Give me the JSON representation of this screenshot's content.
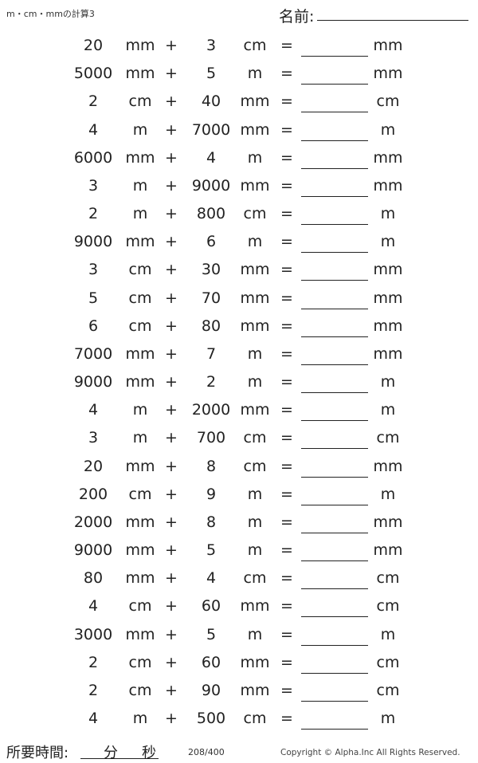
{
  "header": {
    "title": "m・cm・mmの計算3",
    "name_label": "名前:"
  },
  "problems": [
    {
      "a": "20",
      "u1": "mm",
      "b": "3",
      "u2": "cm",
      "ans": "mm"
    },
    {
      "a": "5000",
      "u1": "mm",
      "b": "5",
      "u2": "m",
      "ans": "mm"
    },
    {
      "a": "2",
      "u1": "cm",
      "b": "40",
      "u2": "mm",
      "ans": "cm"
    },
    {
      "a": "4",
      "u1": "m",
      "b": "7000",
      "u2": "mm",
      "ans": "m"
    },
    {
      "a": "6000",
      "u1": "mm",
      "b": "4",
      "u2": "m",
      "ans": "mm"
    },
    {
      "a": "3",
      "u1": "m",
      "b": "9000",
      "u2": "mm",
      "ans": "mm"
    },
    {
      "a": "2",
      "u1": "m",
      "b": "800",
      "u2": "cm",
      "ans": "m"
    },
    {
      "a": "9000",
      "u1": "mm",
      "b": "6",
      "u2": "m",
      "ans": "m"
    },
    {
      "a": "3",
      "u1": "cm",
      "b": "30",
      "u2": "mm",
      "ans": "mm"
    },
    {
      "a": "5",
      "u1": "cm",
      "b": "70",
      "u2": "mm",
      "ans": "mm"
    },
    {
      "a": "6",
      "u1": "cm",
      "b": "80",
      "u2": "mm",
      "ans": "mm"
    },
    {
      "a": "7000",
      "u1": "mm",
      "b": "7",
      "u2": "m",
      "ans": "mm"
    },
    {
      "a": "9000",
      "u1": "mm",
      "b": "2",
      "u2": "m",
      "ans": "m"
    },
    {
      "a": "4",
      "u1": "m",
      "b": "2000",
      "u2": "mm",
      "ans": "m"
    },
    {
      "a": "3",
      "u1": "m",
      "b": "700",
      "u2": "cm",
      "ans": "cm"
    },
    {
      "a": "20",
      "u1": "mm",
      "b": "8",
      "u2": "cm",
      "ans": "mm"
    },
    {
      "a": "200",
      "u1": "cm",
      "b": "9",
      "u2": "m",
      "ans": "m"
    },
    {
      "a": "2000",
      "u1": "mm",
      "b": "8",
      "u2": "m",
      "ans": "mm"
    },
    {
      "a": "9000",
      "u1": "mm",
      "b": "5",
      "u2": "m",
      "ans": "mm"
    },
    {
      "a": "80",
      "u1": "mm",
      "b": "4",
      "u2": "cm",
      "ans": "cm"
    },
    {
      "a": "4",
      "u1": "cm",
      "b": "60",
      "u2": "mm",
      "ans": "cm"
    },
    {
      "a": "3000",
      "u1": "mm",
      "b": "5",
      "u2": "m",
      "ans": "m"
    },
    {
      "a": "2",
      "u1": "cm",
      "b": "60",
      "u2": "mm",
      "ans": "cm"
    },
    {
      "a": "2",
      "u1": "cm",
      "b": "90",
      "u2": "mm",
      "ans": "cm"
    },
    {
      "a": "4",
      "u1": "m",
      "b": "500",
      "u2": "cm",
      "ans": "m"
    }
  ],
  "symbols": {
    "plus": "+",
    "equals": "="
  },
  "footer": {
    "time_label": "所要時間:",
    "minutes": "分",
    "seconds": "秒",
    "page": "208/400",
    "copyright": "Copyright © Alpha.Inc All Rights Reserved."
  }
}
